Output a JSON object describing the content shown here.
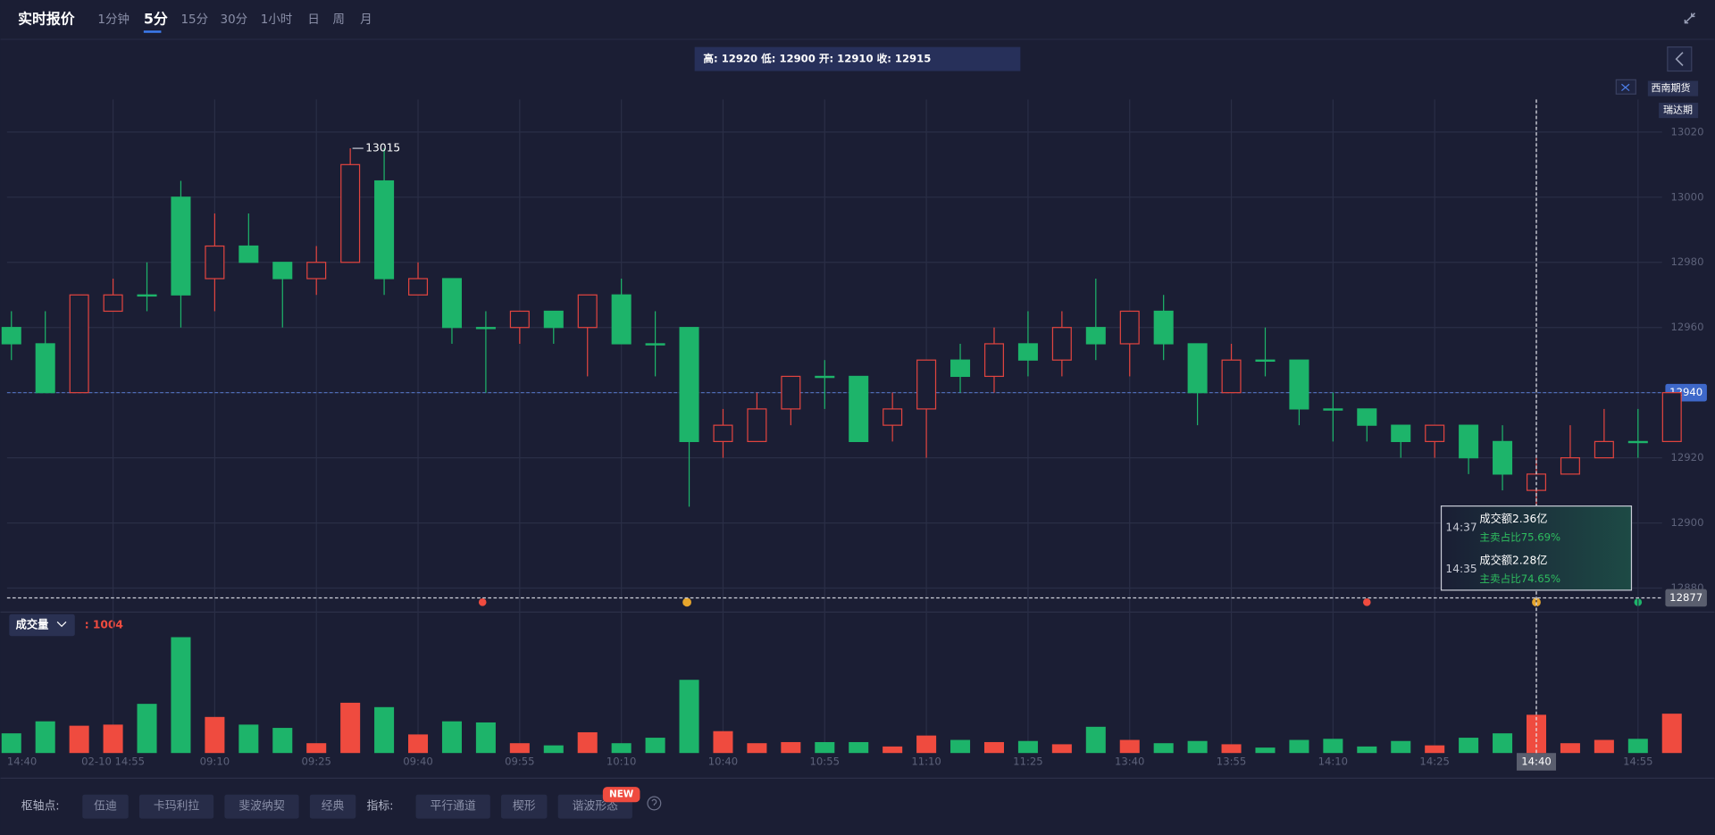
{
  "header": {
    "title": "实时报价",
    "tabs": [
      "1分钟",
      "5分",
      "15分",
      "30分",
      "1小时",
      "日",
      "周",
      "月"
    ],
    "active_tab": 1
  },
  "ohlc_text": "高: 12920 低: 12900 开: 12910 收: 12915",
  "legend": [
    "西南期货",
    "瑞达期"
  ],
  "chart_data": {
    "type": "candlestick",
    "categories": [
      "14:40",
      null,
      null,
      "02-10 14:55",
      null,
      null,
      "09:10",
      null,
      null,
      "09:25",
      null,
      null,
      "09:40",
      null,
      null,
      "09:55",
      null,
      null,
      "10:10",
      null,
      null,
      "10:40",
      null,
      null,
      "10:55",
      null,
      null,
      "11:10",
      null,
      null,
      "11:25",
      null,
      null,
      "13:40",
      null,
      null,
      "13:55",
      null,
      null,
      "14:10",
      null,
      null,
      "14:25",
      null,
      null,
      "14:40",
      null,
      null,
      "14:55",
      null
    ],
    "open": [
      12960,
      12955,
      12940,
      12965,
      12970,
      13000,
      12975,
      12985,
      12980,
      12975,
      12980,
      13005,
      12970,
      12975,
      12960,
      12960,
      12965,
      12960,
      12970,
      12955,
      12960,
      12925,
      12925,
      12935,
      12945,
      12945,
      12930,
      12935,
      12950,
      12945,
      12955,
      12950,
      12960,
      12955,
      12965,
      12955,
      12940,
      12950,
      12950,
      12935,
      12935,
      12930,
      12925,
      12930,
      12925,
      12910,
      12915,
      12920,
      12925,
      12925
    ],
    "high": [
      12965,
      12965,
      12970,
      12975,
      12980,
      13005,
      12995,
      12995,
      12980,
      12985,
      13015,
      13015,
      12980,
      12975,
      12965,
      12965,
      12965,
      12970,
      12975,
      12965,
      12960,
      12935,
      12940,
      12945,
      12950,
      12945,
      12940,
      12950,
      12955,
      12960,
      12965,
      12965,
      12975,
      12965,
      12970,
      12955,
      12955,
      12960,
      12950,
      12940,
      12935,
      12930,
      12930,
      12930,
      12930,
      12920,
      12930,
      12935,
      12935,
      12940
    ],
    "low": [
      12950,
      12940,
      12940,
      12965,
      12965,
      12960,
      12965,
      12980,
      12960,
      12970,
      12980,
      12970,
      12970,
      12955,
      12940,
      12955,
      12955,
      12945,
      12955,
      12945,
      12905,
      12920,
      12925,
      12930,
      12935,
      12925,
      12925,
      12920,
      12940,
      12940,
      12945,
      12945,
      12950,
      12945,
      12950,
      12930,
      12940,
      12945,
      12930,
      12925,
      12925,
      12920,
      12920,
      12915,
      12910,
      12900,
      12915,
      12920,
      12920,
      12925
    ],
    "close": [
      12955,
      12940,
      12970,
      12970,
      12970,
      12970,
      12985,
      12980,
      12975,
      12980,
      13010,
      12975,
      12975,
      12960,
      12960,
      12965,
      12960,
      12970,
      12955,
      12955,
      12925,
      12930,
      12935,
      12945,
      12945,
      12925,
      12935,
      12950,
      12945,
      12955,
      12950,
      12960,
      12955,
      12965,
      12955,
      12940,
      12950,
      12950,
      12935,
      12935,
      12930,
      12925,
      12930,
      12920,
      12915,
      12915,
      12920,
      12925,
      12925,
      12940
    ],
    "volume": [
      517,
      832,
      717,
      746,
      1291,
      3041,
      947,
      746,
      660,
      258,
      1320,
      1205,
      488,
      832,
      803,
      258,
      201,
      545,
      258,
      402,
      1922,
      574,
      258,
      287,
      287,
      287,
      172,
      459,
      344,
      287,
      316,
      230,
      689,
      344,
      258,
      316,
      230,
      143,
      344,
      373,
      172,
      316,
      201,
      402,
      517,
      1004,
      258,
      344,
      373,
      1033
    ],
    "up_color": "#e0443f",
    "down_color": "#1db46a",
    "ylim": [
      12875,
      13030
    ],
    "yticks": [
      12880,
      12900,
      12920,
      12940,
      12960,
      12980,
      13000,
      13020
    ],
    "grid": true,
    "current_price": 12940,
    "low_line": 12877,
    "max_label": 13015,
    "crosshair_index": 45
  },
  "volume_panel": {
    "label": "成交量",
    "readout": ": 1004"
  },
  "tooltip": [
    {
      "time": "14:37",
      "amount": "成交额2.36亿",
      "ratio": "主卖占比75.69%"
    },
    {
      "time": "14:35",
      "amount": "成交额2.28亿",
      "ratio": "主卖占比74.65%"
    }
  ],
  "toolbar": {
    "pivot_label": "枢轴点:",
    "pivot_buttons": [
      "伍迪",
      "卡玛利拉",
      "斐波纳契",
      "经典"
    ],
    "indicator_label": "指标:",
    "indicator_buttons": [
      "平行通道",
      "楔形",
      "谐波形态"
    ],
    "badge": "NEW"
  }
}
